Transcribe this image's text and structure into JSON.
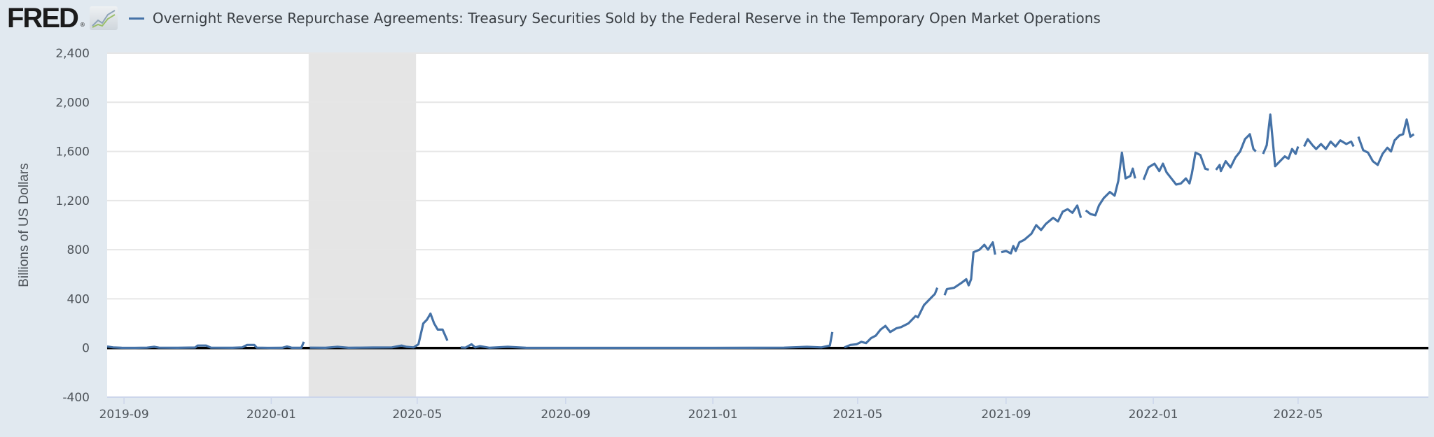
{
  "header": {
    "logo_text": "FRED",
    "logo_mark": "®",
    "logo_icon": "chart-trend-icon",
    "series_title": "Overnight Reverse Repurchase Agreements: Treasury Securities Sold by the Federal Reserve in the Temporary Open Market Operations"
  },
  "colors": {
    "background": "#e1e9f0",
    "plot_bg": "#ffffff",
    "series": "#4572a7",
    "recession": "#e5e5e5",
    "grid": "#e6e6e6",
    "zero_line": "#000000"
  },
  "chart_data": {
    "type": "line",
    "title": "Overnight Reverse Repurchase Agreements: Treasury Securities Sold by the Federal Reserve in the Temporary Open Market Operations",
    "xlabel": "",
    "ylabel": "Billions of US Dollars",
    "ylim": [
      -400,
      2400
    ],
    "xlim": [
      "2019-08-18",
      "2022-08-17"
    ],
    "yticks": [
      -400,
      0,
      400,
      800,
      1200,
      1600,
      2000,
      2400
    ],
    "ytick_labels": [
      "-400",
      "0",
      "400",
      "800",
      "1,200",
      "1,600",
      "2,000",
      "2,400"
    ],
    "xticks": [
      "2019-09-01",
      "2020-01-01",
      "2020-05-01",
      "2020-09-01",
      "2021-01-01",
      "2021-05-01",
      "2021-09-01",
      "2022-01-01",
      "2022-05-01"
    ],
    "xtick_labels": [
      "2019-09",
      "2020-01",
      "2020-05",
      "2020-09",
      "2021-01",
      "2021-05",
      "2021-09",
      "2022-01",
      "2022-05"
    ],
    "grid": true,
    "legend": "top-left",
    "recessions": [
      {
        "start": "2020-02-01",
        "end": "2020-04-30"
      }
    ],
    "reference_line": 0,
    "series": [
      {
        "name": "Overnight Reverse Repurchase Agreements",
        "points": [
          [
            "2019-08-18",
            12
          ],
          [
            "2019-08-23",
            5
          ],
          [
            "2019-08-30",
            2
          ],
          [
            "2019-09-10",
            1
          ],
          [
            "2019-09-20",
            3
          ],
          [
            "2019-09-26",
            10
          ],
          [
            "2019-09-30",
            3
          ],
          [
            "2019-10-15",
            2
          ],
          [
            "2019-10-30",
            4
          ],
          [
            "2019-11-01",
            20
          ],
          [
            "2019-11-08",
            20
          ],
          [
            "2019-11-12",
            3
          ],
          [
            "2019-11-30",
            2
          ],
          [
            "2019-12-08",
            5
          ],
          [
            "2019-12-12",
            25
          ],
          [
            "2019-12-18",
            25
          ],
          [
            "2019-12-20",
            3
          ],
          [
            "2019-12-31",
            1
          ],
          [
            "2020-01-10",
            2
          ],
          [
            "2020-01-14",
            12
          ],
          [
            "2020-01-16",
            8
          ],
          [
            "2020-01-18",
            2
          ],
          [
            "2020-01-26",
            2
          ],
          [
            "2020-01-28",
            50
          ],
          [
            "2020-01-30",
            null
          ],
          [
            "2020-02-02",
            3
          ],
          [
            "2020-02-15",
            2
          ],
          [
            "2020-02-25",
            10
          ],
          [
            "2020-03-05",
            2
          ],
          [
            "2020-03-15",
            3
          ],
          [
            "2020-03-25",
            4
          ],
          [
            "2020-04-10",
            5
          ],
          [
            "2020-04-18",
            20
          ],
          [
            "2020-04-22",
            10
          ],
          [
            "2020-04-28",
            5
          ],
          [
            "2020-05-02",
            30
          ],
          [
            "2020-05-06",
            200
          ],
          [
            "2020-05-09",
            230
          ],
          [
            "2020-05-12",
            280
          ],
          [
            "2020-05-15",
            200
          ],
          [
            "2020-05-18",
            150
          ],
          [
            "2020-05-22",
            150
          ],
          [
            "2020-05-26",
            60
          ],
          [
            "2020-05-28",
            null
          ],
          [
            "2020-06-06",
            5
          ],
          [
            "2020-06-10",
            3
          ],
          [
            "2020-06-15",
            30
          ],
          [
            "2020-06-18",
            5
          ],
          [
            "2020-06-22",
            15
          ],
          [
            "2020-06-30",
            2
          ],
          [
            "2020-07-15",
            10
          ],
          [
            "2020-07-30",
            2
          ],
          [
            "2020-09-01",
            1
          ],
          [
            "2020-11-01",
            1
          ],
          [
            "2021-01-01",
            1
          ],
          [
            "2021-02-01",
            2
          ],
          [
            "2021-03-01",
            3
          ],
          [
            "2021-03-20",
            10
          ],
          [
            "2021-04-01",
            5
          ],
          [
            "2021-04-08",
            20
          ],
          [
            "2021-04-10",
            130
          ],
          [
            "2021-04-12",
            null
          ],
          [
            "2021-04-20",
            5
          ],
          [
            "2021-04-25",
            25
          ],
          [
            "2021-04-30",
            30
          ],
          [
            "2021-05-04",
            50
          ],
          [
            "2021-05-08",
            40
          ],
          [
            "2021-05-12",
            80
          ],
          [
            "2021-05-16",
            100
          ],
          [
            "2021-05-20",
            150
          ],
          [
            "2021-05-24",
            180
          ],
          [
            "2021-05-28",
            130
          ],
          [
            "2021-06-02",
            160
          ],
          [
            "2021-06-06",
            170
          ],
          [
            "2021-06-12",
            200
          ],
          [
            "2021-06-18",
            260
          ],
          [
            "2021-06-20",
            250
          ],
          [
            "2021-06-25",
            350
          ],
          [
            "2021-06-30",
            400
          ],
          [
            "2021-07-04",
            440
          ],
          [
            "2021-07-06",
            490
          ],
          [
            "2021-07-08",
            null
          ],
          [
            "2021-07-12",
            430
          ],
          [
            "2021-07-14",
            480
          ],
          [
            "2021-07-20",
            490
          ],
          [
            "2021-07-26",
            530
          ],
          [
            "2021-07-30",
            560
          ],
          [
            "2021-08-01",
            510
          ],
          [
            "2021-08-03",
            560
          ],
          [
            "2021-08-05",
            780
          ],
          [
            "2021-08-10",
            800
          ],
          [
            "2021-08-14",
            840
          ],
          [
            "2021-08-17",
            800
          ],
          [
            "2021-08-21",
            860
          ],
          [
            "2021-08-23",
            760
          ],
          [
            "2021-08-24",
            null
          ],
          [
            "2021-08-28",
            780
          ],
          [
            "2021-09-01",
            790
          ],
          [
            "2021-09-05",
            770
          ],
          [
            "2021-09-07",
            830
          ],
          [
            "2021-09-09",
            790
          ],
          [
            "2021-09-12",
            860
          ],
          [
            "2021-09-16",
            880
          ],
          [
            "2021-09-22",
            930
          ],
          [
            "2021-09-26",
            1000
          ],
          [
            "2021-09-30",
            960
          ],
          [
            "2021-10-04",
            1010
          ],
          [
            "2021-10-10",
            1060
          ],
          [
            "2021-10-14",
            1030
          ],
          [
            "2021-10-18",
            1110
          ],
          [
            "2021-10-22",
            1130
          ],
          [
            "2021-10-26",
            1100
          ],
          [
            "2021-10-30",
            1160
          ],
          [
            "2021-11-02",
            1060
          ],
          [
            "2021-11-03",
            null
          ],
          [
            "2021-11-06",
            1120
          ],
          [
            "2021-11-10",
            1090
          ],
          [
            "2021-11-14",
            1080
          ],
          [
            "2021-11-17",
            1160
          ],
          [
            "2021-11-21",
            1220
          ],
          [
            "2021-11-26",
            1270
          ],
          [
            "2021-11-30",
            1240
          ],
          [
            "2021-12-03",
            1360
          ],
          [
            "2021-12-06",
            1590
          ],
          [
            "2021-12-09",
            1380
          ],
          [
            "2021-12-13",
            1400
          ],
          [
            "2021-12-15",
            1460
          ],
          [
            "2021-12-17",
            1380
          ],
          [
            "2021-12-18",
            null
          ],
          [
            "2021-12-24",
            1370
          ],
          [
            "2021-12-28",
            1470
          ],
          [
            "2022-01-02",
            1500
          ],
          [
            "2022-01-06",
            1440
          ],
          [
            "2022-01-09",
            1500
          ],
          [
            "2022-01-12",
            1430
          ],
          [
            "2022-01-16",
            1380
          ],
          [
            "2022-01-20",
            1330
          ],
          [
            "2022-01-24",
            1340
          ],
          [
            "2022-01-28",
            1380
          ],
          [
            "2022-01-31",
            1340
          ],
          [
            "2022-02-02",
            1420
          ],
          [
            "2022-02-05",
            1590
          ],
          [
            "2022-02-09",
            1570
          ],
          [
            "2022-02-13",
            1460
          ],
          [
            "2022-02-16",
            1450
          ],
          [
            "2022-02-18",
            null
          ],
          [
            "2022-02-22",
            1450
          ],
          [
            "2022-02-25",
            1490
          ],
          [
            "2022-02-26",
            1440
          ],
          [
            "2022-03-02",
            1520
          ],
          [
            "2022-03-06",
            1470
          ],
          [
            "2022-03-10",
            1550
          ],
          [
            "2022-03-14",
            1600
          ],
          [
            "2022-03-18",
            1700
          ],
          [
            "2022-03-22",
            1740
          ],
          [
            "2022-03-25",
            1620
          ],
          [
            "2022-03-27",
            1600
          ],
          [
            "2022-03-30",
            null
          ],
          [
            "2022-04-02",
            1580
          ],
          [
            "2022-04-05",
            1650
          ],
          [
            "2022-04-08",
            1900
          ],
          [
            "2022-04-12",
            1480
          ],
          [
            "2022-04-16",
            1520
          ],
          [
            "2022-04-20",
            1560
          ],
          [
            "2022-04-23",
            1540
          ],
          [
            "2022-04-26",
            1620
          ],
          [
            "2022-04-29",
            1580
          ],
          [
            "2022-05-01",
            1640
          ],
          [
            "2022-05-02",
            null
          ],
          [
            "2022-05-06",
            1640
          ],
          [
            "2022-05-09",
            1700
          ],
          [
            "2022-05-13",
            1650
          ],
          [
            "2022-05-16",
            1620
          ],
          [
            "2022-05-20",
            1660
          ],
          [
            "2022-05-24",
            1620
          ],
          [
            "2022-05-28",
            1680
          ],
          [
            "2022-06-01",
            1640
          ],
          [
            "2022-06-05",
            1690
          ],
          [
            "2022-06-10",
            1660
          ],
          [
            "2022-06-14",
            1680
          ],
          [
            "2022-06-16",
            1640
          ],
          [
            "2022-06-18",
            null
          ],
          [
            "2022-06-20",
            1720
          ],
          [
            "2022-06-24",
            1610
          ],
          [
            "2022-06-28",
            1590
          ],
          [
            "2022-07-02",
            1520
          ],
          [
            "2022-07-06",
            1490
          ],
          [
            "2022-07-10",
            1580
          ],
          [
            "2022-07-14",
            1630
          ],
          [
            "2022-07-17",
            1600
          ],
          [
            "2022-07-20",
            1690
          ],
          [
            "2022-07-24",
            1730
          ],
          [
            "2022-07-27",
            1740
          ],
          [
            "2022-07-30",
            1860
          ],
          [
            "2022-08-02",
            1720
          ],
          [
            "2022-08-05",
            1740
          ]
        ]
      }
    ]
  }
}
